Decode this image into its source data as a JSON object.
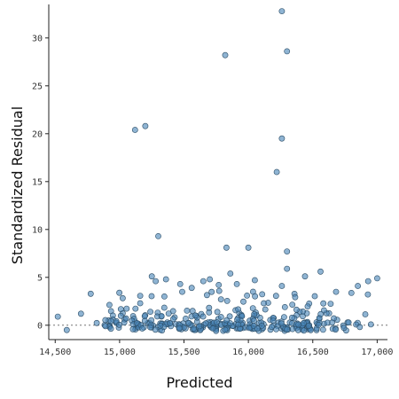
{
  "chart_data": {
    "type": "scatter",
    "xlabel": "Predicted",
    "ylabel": "Standardized Residual",
    "xlim": [
      14450,
      17080
    ],
    "ylim": [
      -1.5,
      33.5
    ],
    "xticks": [
      14500,
      15000,
      15500,
      16000,
      16500,
      17000
    ],
    "xtick_labels": [
      "14,500",
      "15,000",
      "15,500",
      "16,000",
      "16,500",
      "17,000"
    ],
    "yticks": [
      0,
      5,
      10,
      15,
      20,
      25,
      30
    ],
    "ytick_labels": [
      "0",
      "5",
      "10",
      "15",
      "20",
      "25",
      "30"
    ],
    "reference_line": {
      "y": 0,
      "style": "dotted"
    },
    "grid": false,
    "colors": {
      "point_fill": "#4a86b8",
      "point_stroke": "#2c4d66"
    },
    "outliers": [
      [
        16260,
        32.8
      ],
      [
        16300,
        28.6
      ],
      [
        15820,
        28.2
      ],
      [
        15120,
        20.4
      ],
      [
        15200,
        20.8
      ],
      [
        16260,
        19.5
      ],
      [
        16220,
        16.0
      ],
      [
        15300,
        9.3
      ],
      [
        15830,
        8.1
      ],
      [
        16000,
        8.1
      ],
      [
        16300,
        7.7
      ],
      [
        15250,
        5.1
      ],
      [
        15280,
        4.6
      ],
      [
        15360,
        4.8
      ],
      [
        15470,
        4.3
      ],
      [
        15560,
        3.9
      ],
      [
        15650,
        4.6
      ],
      [
        15700,
        4.8
      ],
      [
        15770,
        4.2
      ],
      [
        15860,
        5.4
      ],
      [
        15910,
        4.3
      ],
      [
        16050,
        4.7
      ],
      [
        16260,
        4.1
      ],
      [
        16300,
        5.9
      ],
      [
        16440,
        5.1
      ],
      [
        16560,
        5.6
      ],
      [
        16850,
        4.1
      ],
      [
        16930,
        4.6
      ],
      [
        17000,
        4.9
      ],
      [
        14520,
        0.9
      ],
      [
        14590,
        -0.5
      ],
      [
        14700,
        1.2
      ]
    ],
    "cluster": {
      "count": 330,
      "x_range": [
        14700,
        17000
      ],
      "y_range": [
        -0.6,
        3.6
      ],
      "note": "dense band of points near zero, most between -0.6 and 1.5"
    }
  }
}
